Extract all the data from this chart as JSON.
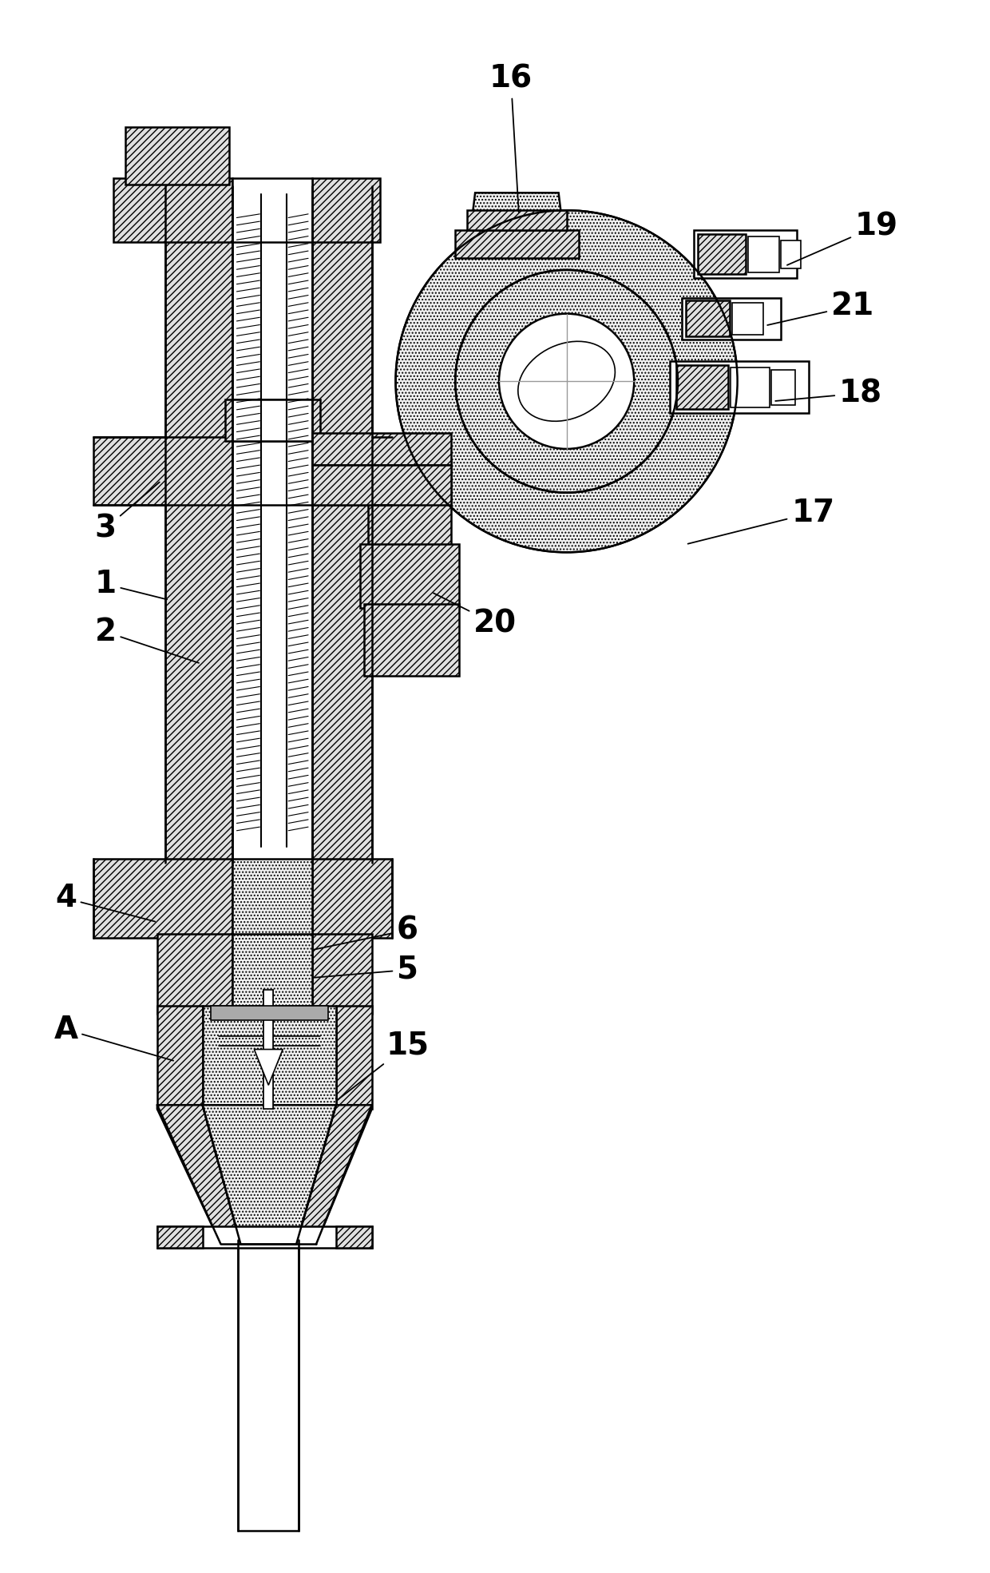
{
  "bg": "#ffffff",
  "lc": "#000000",
  "figsize": [
    12.4,
    19.69
  ],
  "dpi": 100,
  "hatch_dense": "////",
  "hatch_stipple": "....",
  "gray_hatch": "#e0e0e0",
  "gray_stipple": "#f0f0f0"
}
